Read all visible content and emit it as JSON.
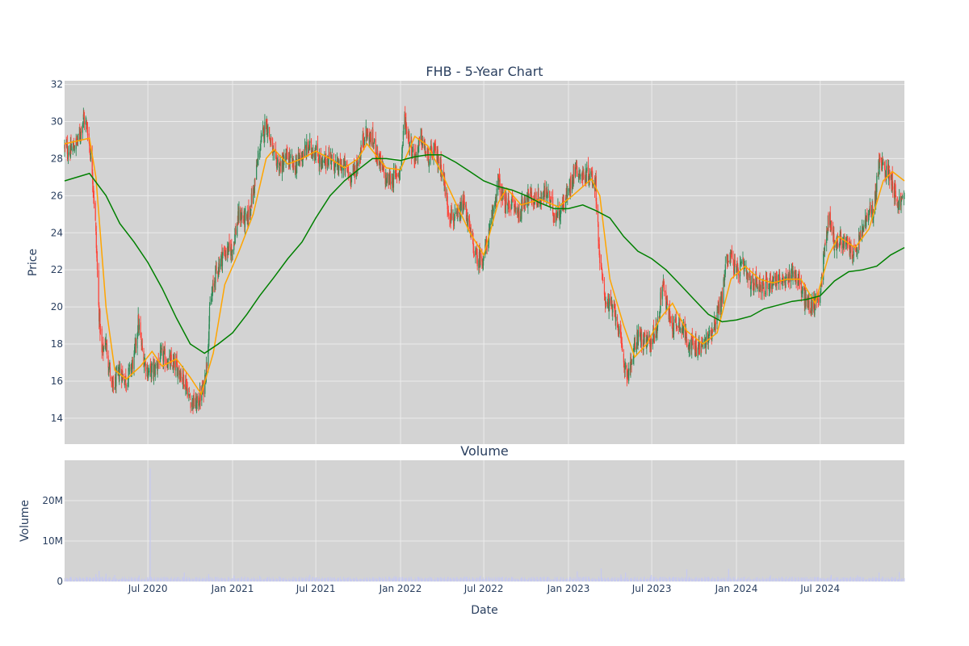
{
  "chart_data": {
    "type": "candlestick",
    "title": "FHB - 5-Year Chart",
    "colors": {
      "plot_bg": "#d3d3d3",
      "grid": "#ebebeb",
      "increasing": "#2e8b57",
      "decreasing": "#ff4136",
      "ma_short": "#ffa500",
      "ma_long": "#008000",
      "volume": "#c6c9f0",
      "text": "#2a3f5f"
    },
    "x_range": [
      "2020-01-02",
      "2024-12-31"
    ],
    "x_ticks": [
      {
        "date": "2020-07-01",
        "label": "Jul 2020"
      },
      {
        "date": "2021-01-01",
        "label": "Jan 2021"
      },
      {
        "date": "2021-07-01",
        "label": "Jul 2021"
      },
      {
        "date": "2022-01-01",
        "label": "Jan 2022"
      },
      {
        "date": "2022-07-01",
        "label": "Jul 2022"
      },
      {
        "date": "2023-01-01",
        "label": "Jan 2023"
      },
      {
        "date": "2023-07-01",
        "label": "Jul 2023"
      },
      {
        "date": "2024-01-01",
        "label": "Jan 2024"
      },
      {
        "date": "2024-07-01",
        "label": "Jul 2024"
      }
    ],
    "price_panel": {
      "ylabel": "Price",
      "ylim": [
        12.6,
        32.2
      ],
      "y_ticks": [
        14,
        16,
        18,
        20,
        22,
        24,
        26,
        28,
        30,
        32
      ],
      "grid": true,
      "close_points": [
        [
          "2020-01-02",
          28.6
        ],
        [
          "2020-01-15",
          28.4
        ],
        [
          "2020-02-01",
          29.0
        ],
        [
          "2020-02-12",
          30.2
        ],
        [
          "2020-02-21",
          29.6
        ],
        [
          "2020-03-02",
          27.4
        ],
        [
          "2020-03-09",
          24.5
        ],
        [
          "2020-03-16",
          20.0
        ],
        [
          "2020-03-23",
          17.4
        ],
        [
          "2020-03-31",
          18.2
        ],
        [
          "2020-04-15",
          15.5
        ],
        [
          "2020-05-01",
          16.6
        ],
        [
          "2020-05-15",
          16.0
        ],
        [
          "2020-06-01",
          17.2
        ],
        [
          "2020-06-10",
          19.2
        ],
        [
          "2020-06-20",
          17.4
        ],
        [
          "2020-07-01",
          16.5
        ],
        [
          "2020-07-15",
          16.6
        ],
        [
          "2020-08-01",
          17.4
        ],
        [
          "2020-08-15",
          17.0
        ],
        [
          "2020-09-01",
          16.8
        ],
        [
          "2020-09-20",
          16.0
        ],
        [
          "2020-10-01",
          15.0
        ],
        [
          "2020-10-15",
          14.7
        ],
        [
          "2020-10-30",
          15.6
        ],
        [
          "2020-11-06",
          17.0
        ],
        [
          "2020-11-13",
          20.0
        ],
        [
          "2020-11-25",
          21.8
        ],
        [
          "2020-12-10",
          22.8
        ],
        [
          "2021-01-01",
          23.2
        ],
        [
          "2021-01-15",
          25.0
        ],
        [
          "2021-02-01",
          24.6
        ],
        [
          "2021-02-15",
          26.2
        ],
        [
          "2021-03-01",
          28.6
        ],
        [
          "2021-03-15",
          30.0
        ],
        [
          "2021-04-01",
          28.0
        ],
        [
          "2021-04-15",
          27.6
        ],
        [
          "2021-05-01",
          28.1
        ],
        [
          "2021-05-15",
          27.5
        ],
        [
          "2021-06-01",
          28.2
        ],
        [
          "2021-06-15",
          28.6
        ],
        [
          "2021-07-01",
          28.4
        ],
        [
          "2021-07-15",
          27.6
        ],
        [
          "2021-08-01",
          28.2
        ],
        [
          "2021-08-15",
          27.5
        ],
        [
          "2021-09-01",
          27.6
        ],
        [
          "2021-09-15",
          27.0
        ],
        [
          "2021-10-01",
          27.8
        ],
        [
          "2021-10-15",
          29.4
        ],
        [
          "2021-11-01",
          29.0
        ],
        [
          "2021-11-15",
          28.0
        ],
        [
          "2021-12-01",
          26.8
        ],
        [
          "2021-12-15",
          26.9
        ],
        [
          "2022-01-01",
          27.4
        ],
        [
          "2022-01-10",
          30.2
        ],
        [
          "2022-01-20",
          29.0
        ],
        [
          "2022-02-01",
          28.0
        ],
        [
          "2022-02-15",
          29.1
        ],
        [
          "2022-03-01",
          28.0
        ],
        [
          "2022-03-15",
          28.4
        ],
        [
          "2022-04-01",
          27.5
        ],
        [
          "2022-04-15",
          25.2
        ],
        [
          "2022-05-01",
          24.6
        ],
        [
          "2022-05-20",
          25.6
        ],
        [
          "2022-06-01",
          24.0
        ],
        [
          "2022-06-15",
          22.6
        ],
        [
          "2022-07-01",
          22.7
        ],
        [
          "2022-07-15",
          24.2
        ],
        [
          "2022-08-01",
          26.8
        ],
        [
          "2022-08-15",
          25.5
        ],
        [
          "2022-09-01",
          25.6
        ],
        [
          "2022-09-15",
          25.0
        ],
        [
          "2022-10-01",
          26.0
        ],
        [
          "2022-10-15",
          25.8
        ],
        [
          "2022-11-01",
          25.8
        ],
        [
          "2022-11-15",
          26.2
        ],
        [
          "2022-12-01",
          25.0
        ],
        [
          "2022-12-15",
          25.2
        ],
        [
          "2023-01-01",
          26.2
        ],
        [
          "2023-01-15",
          27.6
        ],
        [
          "2023-02-01",
          27.0
        ],
        [
          "2023-02-15",
          27.2
        ],
        [
          "2023-03-01",
          26.6
        ],
        [
          "2023-03-10",
          22.5
        ],
        [
          "2023-03-20",
          20.6
        ],
        [
          "2023-04-01",
          20.0
        ],
        [
          "2023-04-15",
          19.6
        ],
        [
          "2023-05-01",
          17.0
        ],
        [
          "2023-05-10",
          16.4
        ],
        [
          "2023-05-20",
          17.2
        ],
        [
          "2023-06-01",
          18.6
        ],
        [
          "2023-06-15",
          18.0
        ],
        [
          "2023-07-01",
          18.2
        ],
        [
          "2023-07-15",
          19.2
        ],
        [
          "2023-07-25",
          21.6
        ],
        [
          "2023-08-01",
          20.2
        ],
        [
          "2023-08-15",
          19.0
        ],
        [
          "2023-09-01",
          19.2
        ],
        [
          "2023-09-15",
          18.3
        ],
        [
          "2023-10-01",
          17.8
        ],
        [
          "2023-10-15",
          17.8
        ],
        [
          "2023-11-01",
          18.3
        ],
        [
          "2023-11-15",
          19.2
        ],
        [
          "2023-12-01",
          20.5
        ],
        [
          "2023-12-10",
          22.6
        ],
        [
          "2023-12-20",
          22.8
        ],
        [
          "2024-01-01",
          21.8
        ],
        [
          "2024-01-15",
          22.2
        ],
        [
          "2024-02-01",
          21.2
        ],
        [
          "2024-02-15",
          21.4
        ],
        [
          "2024-03-01",
          21.0
        ],
        [
          "2024-03-15",
          21.4
        ],
        [
          "2024-04-01",
          21.6
        ],
        [
          "2024-04-15",
          21.2
        ],
        [
          "2024-05-01",
          22.0
        ],
        [
          "2024-05-15",
          21.4
        ],
        [
          "2024-06-01",
          20.2
        ],
        [
          "2024-06-15",
          20.0
        ],
        [
          "2024-07-01",
          20.8
        ],
        [
          "2024-07-10",
          23.0
        ],
        [
          "2024-07-20",
          25.0
        ],
        [
          "2024-08-01",
          23.4
        ],
        [
          "2024-08-15",
          23.6
        ],
        [
          "2024-09-01",
          23.2
        ],
        [
          "2024-09-15",
          22.8
        ],
        [
          "2024-10-01",
          24.2
        ],
        [
          "2024-10-15",
          25.0
        ],
        [
          "2024-10-25",
          25.2
        ],
        [
          "2024-11-06",
          27.8
        ],
        [
          "2024-11-20",
          27.4
        ],
        [
          "2024-12-01",
          27.2
        ],
        [
          "2024-12-15",
          25.6
        ],
        [
          "2024-12-31",
          25.8
        ]
      ],
      "ma_short_points": [
        [
          "2020-01-02",
          28.8
        ],
        [
          "2020-02-25",
          29.1
        ],
        [
          "2020-03-10",
          27.0
        ],
        [
          "2020-04-01",
          20.0
        ],
        [
          "2020-04-20",
          16.6
        ],
        [
          "2020-05-15",
          16.1
        ],
        [
          "2020-06-15",
          16.8
        ],
        [
          "2020-07-10",
          17.6
        ],
        [
          "2020-08-01",
          16.8
        ],
        [
          "2020-09-01",
          17.2
        ],
        [
          "2020-10-01",
          16.2
        ],
        [
          "2020-10-25",
          15.3
        ],
        [
          "2020-11-20",
          17.5
        ],
        [
          "2020-12-15",
          21.2
        ],
        [
          "2021-01-15",
          23.0
        ],
        [
          "2021-02-15",
          25.0
        ],
        [
          "2021-03-15",
          28.0
        ],
        [
          "2021-04-01",
          28.5
        ],
        [
          "2021-05-01",
          27.7
        ],
        [
          "2021-06-01",
          28.0
        ],
        [
          "2021-07-01",
          28.4
        ],
        [
          "2021-08-01",
          28.0
        ],
        [
          "2021-09-01",
          27.5
        ],
        [
          "2021-10-01",
          28.0
        ],
        [
          "2021-10-20",
          28.8
        ],
        [
          "2021-12-01",
          27.5
        ],
        [
          "2022-01-01",
          27.4
        ],
        [
          "2022-02-01",
          29.2
        ],
        [
          "2022-03-01",
          28.7
        ],
        [
          "2022-04-01",
          27.2
        ],
        [
          "2022-05-01",
          25.6
        ],
        [
          "2022-06-01",
          24.0
        ],
        [
          "2022-07-01",
          22.8
        ],
        [
          "2022-08-01",
          25.6
        ],
        [
          "2022-08-20",
          26.4
        ],
        [
          "2022-09-20",
          25.5
        ],
        [
          "2022-11-01",
          25.8
        ],
        [
          "2022-12-10",
          25.4
        ],
        [
          "2023-01-10",
          26.0
        ],
        [
          "2023-02-20",
          26.9
        ],
        [
          "2023-03-10",
          26.0
        ],
        [
          "2023-04-01",
          21.5
        ],
        [
          "2023-05-01",
          19.0
        ],
        [
          "2023-05-25",
          17.3
        ],
        [
          "2023-06-20",
          18.0
        ],
        [
          "2023-07-20",
          19.4
        ],
        [
          "2023-08-15",
          20.2
        ],
        [
          "2023-09-15",
          18.7
        ],
        [
          "2023-10-20",
          18.0
        ],
        [
          "2023-11-20",
          18.6
        ],
        [
          "2023-12-20",
          21.5
        ],
        [
          "2024-01-20",
          22.2
        ],
        [
          "2024-02-20",
          21.5
        ],
        [
          "2024-03-20",
          21.3
        ],
        [
          "2024-04-20",
          21.5
        ],
        [
          "2024-05-20",
          21.5
        ],
        [
          "2024-06-20",
          20.2
        ],
        [
          "2024-07-20",
          22.8
        ],
        [
          "2024-08-10",
          23.8
        ],
        [
          "2024-09-15",
          23.2
        ],
        [
          "2024-10-15",
          24.2
        ],
        [
          "2024-11-15",
          26.8
        ],
        [
          "2024-12-05",
          27.3
        ],
        [
          "2024-12-31",
          26.8
        ]
      ],
      "ma_long_points": [
        [
          "2020-01-02",
          26.8
        ],
        [
          "2020-02-25",
          27.2
        ],
        [
          "2020-04-01",
          26.0
        ],
        [
          "2020-05-01",
          24.5
        ],
        [
          "2020-06-01",
          23.5
        ],
        [
          "2020-07-01",
          22.4
        ],
        [
          "2020-08-01",
          21.0
        ],
        [
          "2020-09-01",
          19.4
        ],
        [
          "2020-10-01",
          18.0
        ],
        [
          "2020-11-01",
          17.5
        ],
        [
          "2020-12-01",
          18.0
        ],
        [
          "2021-01-01",
          18.6
        ],
        [
          "2021-02-01",
          19.6
        ],
        [
          "2021-03-01",
          20.6
        ],
        [
          "2021-04-01",
          21.6
        ],
        [
          "2021-05-01",
          22.6
        ],
        [
          "2021-06-01",
          23.5
        ],
        [
          "2021-07-01",
          24.8
        ],
        [
          "2021-08-01",
          26.0
        ],
        [
          "2021-09-01",
          26.8
        ],
        [
          "2021-10-01",
          27.4
        ],
        [
          "2021-11-01",
          28.0
        ],
        [
          "2021-12-01",
          28.0
        ],
        [
          "2022-01-01",
          27.9
        ],
        [
          "2022-02-01",
          28.1
        ],
        [
          "2022-03-01",
          28.2
        ],
        [
          "2022-04-01",
          28.2
        ],
        [
          "2022-05-01",
          27.8
        ],
        [
          "2022-06-01",
          27.3
        ],
        [
          "2022-07-01",
          26.8
        ],
        [
          "2022-08-01",
          26.5
        ],
        [
          "2022-09-01",
          26.3
        ],
        [
          "2022-10-01",
          26.0
        ],
        [
          "2022-11-01",
          25.6
        ],
        [
          "2022-12-01",
          25.3
        ],
        [
          "2023-01-01",
          25.3
        ],
        [
          "2023-02-01",
          25.5
        ],
        [
          "2023-03-01",
          25.2
        ],
        [
          "2023-04-01",
          24.8
        ],
        [
          "2023-05-01",
          23.8
        ],
        [
          "2023-06-01",
          23.0
        ],
        [
          "2023-07-01",
          22.6
        ],
        [
          "2023-08-01",
          22.0
        ],
        [
          "2023-09-01",
          21.2
        ],
        [
          "2023-10-01",
          20.4
        ],
        [
          "2023-11-01",
          19.6
        ],
        [
          "2023-12-01",
          19.2
        ],
        [
          "2024-01-01",
          19.3
        ],
        [
          "2024-02-01",
          19.5
        ],
        [
          "2024-03-01",
          19.9
        ],
        [
          "2024-04-01",
          20.1
        ],
        [
          "2024-05-01",
          20.3
        ],
        [
          "2024-06-01",
          20.4
        ],
        [
          "2024-07-01",
          20.6
        ],
        [
          "2024-08-01",
          21.4
        ],
        [
          "2024-09-01",
          21.9
        ],
        [
          "2024-10-01",
          22.0
        ],
        [
          "2024-11-01",
          22.2
        ],
        [
          "2024-12-01",
          22.8
        ],
        [
          "2024-12-31",
          23.2
        ]
      ]
    },
    "volume_panel": {
      "title": "Volume",
      "ylabel": "Volume",
      "xlabel": "Date",
      "ylim": [
        0,
        30000000
      ],
      "y_ticks": [
        {
          "value": 0,
          "label": "0"
        },
        {
          "value": 10000000,
          "label": "10M"
        },
        {
          "value": 20000000,
          "label": "20M"
        }
      ],
      "typical_volume": 700000,
      "spikes": [
        [
          "2020-03-10",
          1800000
        ],
        [
          "2020-03-17",
          2600000
        ],
        [
          "2020-04-01",
          1900000
        ],
        [
          "2020-04-20",
          1600000
        ],
        [
          "2020-06-12",
          1500000
        ],
        [
          "2020-07-06",
          28000000
        ],
        [
          "2020-09-18",
          2200000
        ],
        [
          "2020-11-10",
          1800000
        ],
        [
          "2021-01-04",
          1500000
        ],
        [
          "2021-03-01",
          1400000
        ],
        [
          "2021-06-18",
          1600000
        ],
        [
          "2021-12-20",
          1300000
        ],
        [
          "2022-06-24",
          1400000
        ],
        [
          "2023-01-20",
          2500000
        ],
        [
          "2023-03-13",
          3200000
        ],
        [
          "2023-04-25",
          1700000
        ],
        [
          "2023-05-05",
          2200000
        ],
        [
          "2023-06-30",
          1600000
        ],
        [
          "2023-09-15",
          3000000
        ],
        [
          "2023-12-15",
          3100000
        ],
        [
          "2024-03-15",
          1500000
        ],
        [
          "2024-07-25",
          1600000
        ],
        [
          "2024-09-20",
          1500000
        ],
        [
          "2024-11-06",
          2200000
        ],
        [
          "2024-12-20",
          2300000
        ]
      ]
    }
  }
}
